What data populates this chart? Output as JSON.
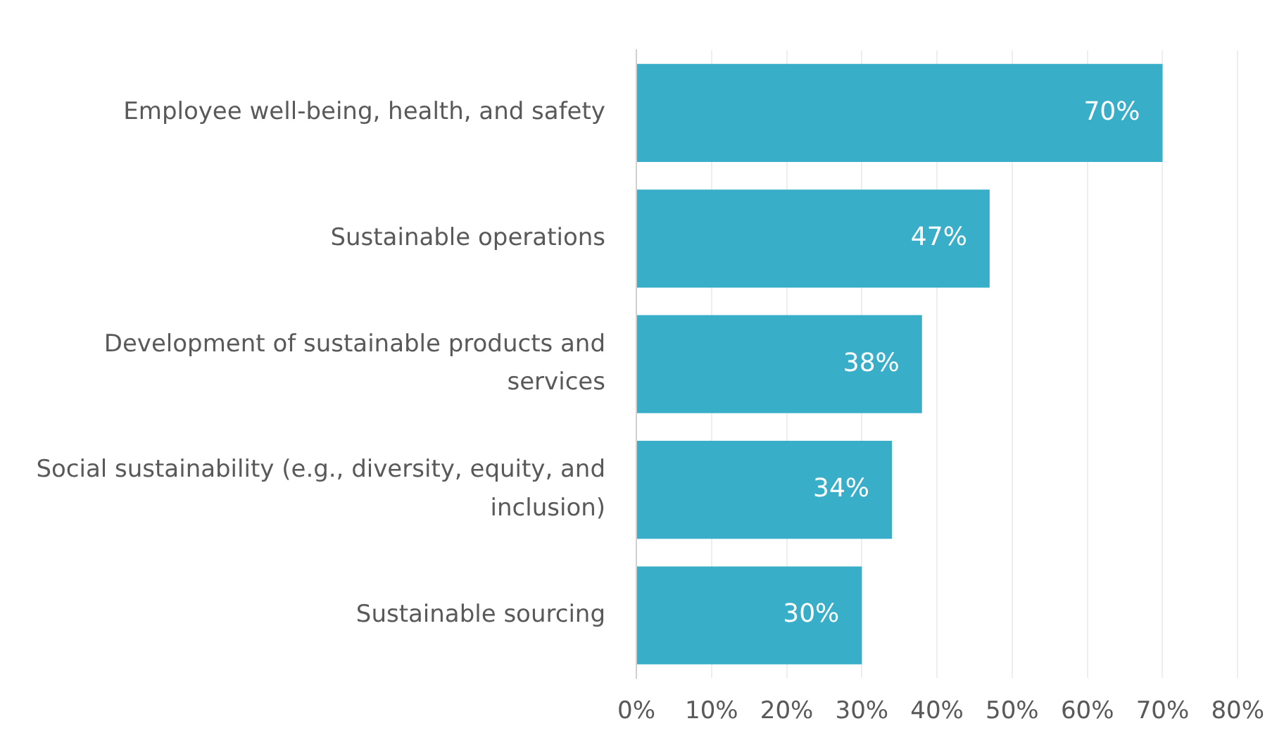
{
  "chart_data": {
    "type": "bar",
    "orientation": "horizontal",
    "categories": [
      "Employee well-being, health, and safety",
      "Sustainable operations",
      "Development of sustainable products and services",
      "Social sustainability (e.g., diversity, equity, and inclusion)",
      "Sustainable sourcing"
    ],
    "values": [
      70,
      47,
      38,
      34,
      30
    ],
    "color": "#38aec8",
    "value_labels": [
      "70%",
      "47%",
      "38%",
      "34%",
      "30%"
    ],
    "xlim": [
      0,
      80
    ],
    "xticks": [
      {
        "value": 0,
        "label": "0%"
      },
      {
        "value": 10,
        "label": "10%"
      },
      {
        "value": 20,
        "label": "20%"
      },
      {
        "value": 30,
        "label": "30%"
      },
      {
        "value": 40,
        "label": "40%"
      },
      {
        "value": 50,
        "label": "50%"
      },
      {
        "value": 60,
        "label": "60%"
      },
      {
        "value": 70,
        "label": "70%"
      },
      {
        "value": 80,
        "label": "80%"
      }
    ],
    "grid": "x",
    "legend": false
  }
}
